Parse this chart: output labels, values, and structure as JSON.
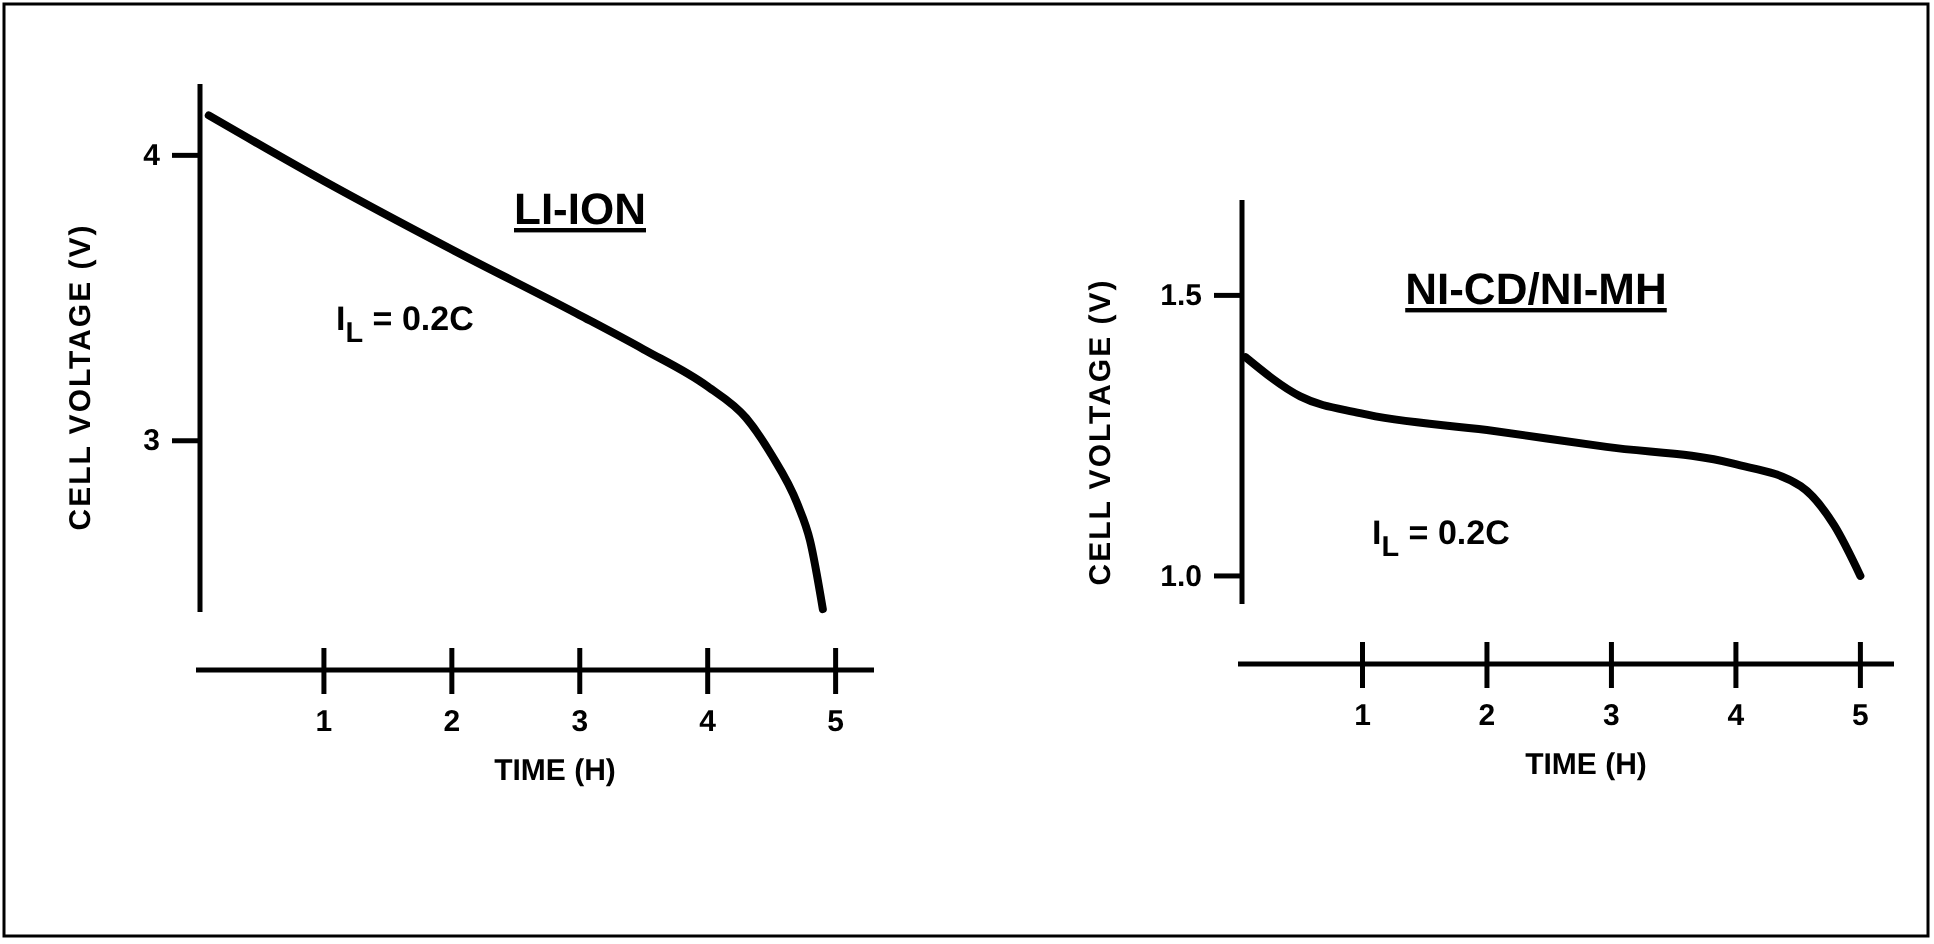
{
  "chart_data": [
    {
      "type": "line",
      "title": "LI-ION",
      "xlabel": "TIME (H)",
      "ylabel": "CELL VOLTAGE (V)",
      "annotations": [
        "I$_{L}$ = 0.2C"
      ],
      "xlim": [
        0,
        5.3
      ],
      "xticks": [
        1,
        2,
        3,
        4,
        5
      ],
      "ylim": [
        2.4,
        4.25
      ],
      "yticks": [
        3,
        4
      ],
      "series": [
        {
          "color": "#000000",
          "x": [
            0.1,
            1,
            2,
            3,
            3.5,
            4,
            4.3,
            4.5,
            4.7,
            4.8,
            4.9
          ],
          "values": [
            4.14,
            3.91,
            3.67,
            3.44,
            3.32,
            3.19,
            3.08,
            2.95,
            2.78,
            2.65,
            2.41
          ]
        }
      ]
    },
    {
      "type": "line",
      "title": "NI-CD/NI-MH",
      "xlabel": "TIME (H)",
      "ylabel": "CELL VOLTAGE (V)",
      "annotations": [
        "I$_{L}$ = 0.2C"
      ],
      "xlim": [
        0,
        5.27
      ],
      "xticks": [
        1,
        2,
        3,
        4,
        5
      ],
      "ylim": [
        0.95,
        1.67
      ],
      "yticks": [
        {
          "value": 1,
          "label": "1.0"
        },
        1.5
      ],
      "series": [
        {
          "color": "#000000",
          "x": [
            0.06,
            0.5,
            0.98,
            2,
            2.96,
            3.98,
            4.52,
            4.79,
            5.0
          ],
          "values": [
            1.39,
            1.32,
            1.29,
            1.26,
            1.23,
            1.2,
            1.16,
            1.09,
            1.0
          ]
        }
      ]
    }
  ]
}
